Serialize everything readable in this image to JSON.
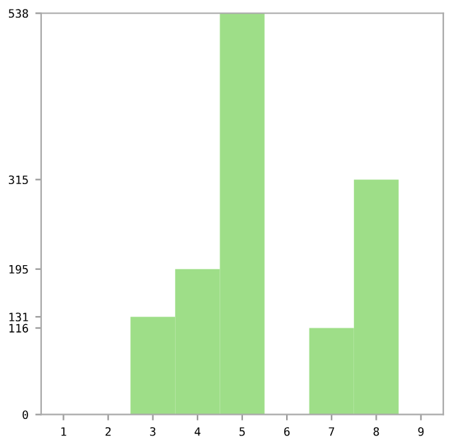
{
  "chart_data": {
    "type": "bar",
    "categories": [
      "1",
      "2",
      "3",
      "4",
      "5",
      "6",
      "7",
      "8",
      "9"
    ],
    "values": [
      0,
      0,
      131,
      195,
      538,
      0,
      116,
      315,
      0
    ],
    "color": "#9ede88",
    "ylim": [
      0,
      538
    ],
    "yticks": [
      0,
      116,
      131,
      195,
      315,
      538
    ],
    "grid": false
  }
}
